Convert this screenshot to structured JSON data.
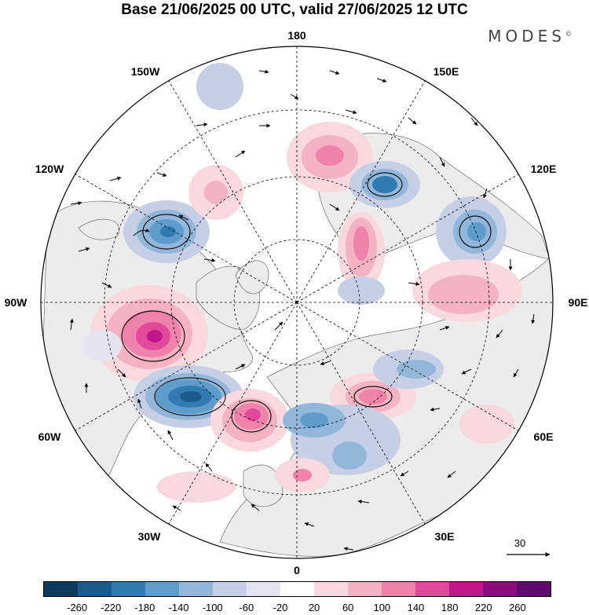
{
  "title": "Base 21/06/2025 00 UTC, valid 27/06/2025 12 UTC",
  "brand": "MODES",
  "brand_mark": "©",
  "longitude_labels": [
    "180",
    "150E",
    "120E",
    "90E",
    "60E",
    "30E",
    "0",
    "30W",
    "60W",
    "90W",
    "120W",
    "150W"
  ],
  "vector_scale": "30",
  "legend": {
    "labels": [
      "-260",
      "-220",
      "-180",
      "-140",
      "-100",
      "-60",
      "-20",
      "20",
      "60",
      "100",
      "140",
      "180",
      "220",
      "260"
    ],
    "colors": [
      "#0c3a5e",
      "#1a5d8d",
      "#2f7bb2",
      "#5d9ccb",
      "#93b7da",
      "#c5cfe6",
      "#e5e5f1",
      "#ffffff",
      "#f9d9dd",
      "#f4b3c3",
      "#ef82ab",
      "#e2499a",
      "#c01889",
      "#8e0d7d",
      "#5e0a6f"
    ]
  },
  "map": {
    "land_color": "#ececec",
    "ocean_color": "#ffffff",
    "graticule": "dashed"
  }
}
